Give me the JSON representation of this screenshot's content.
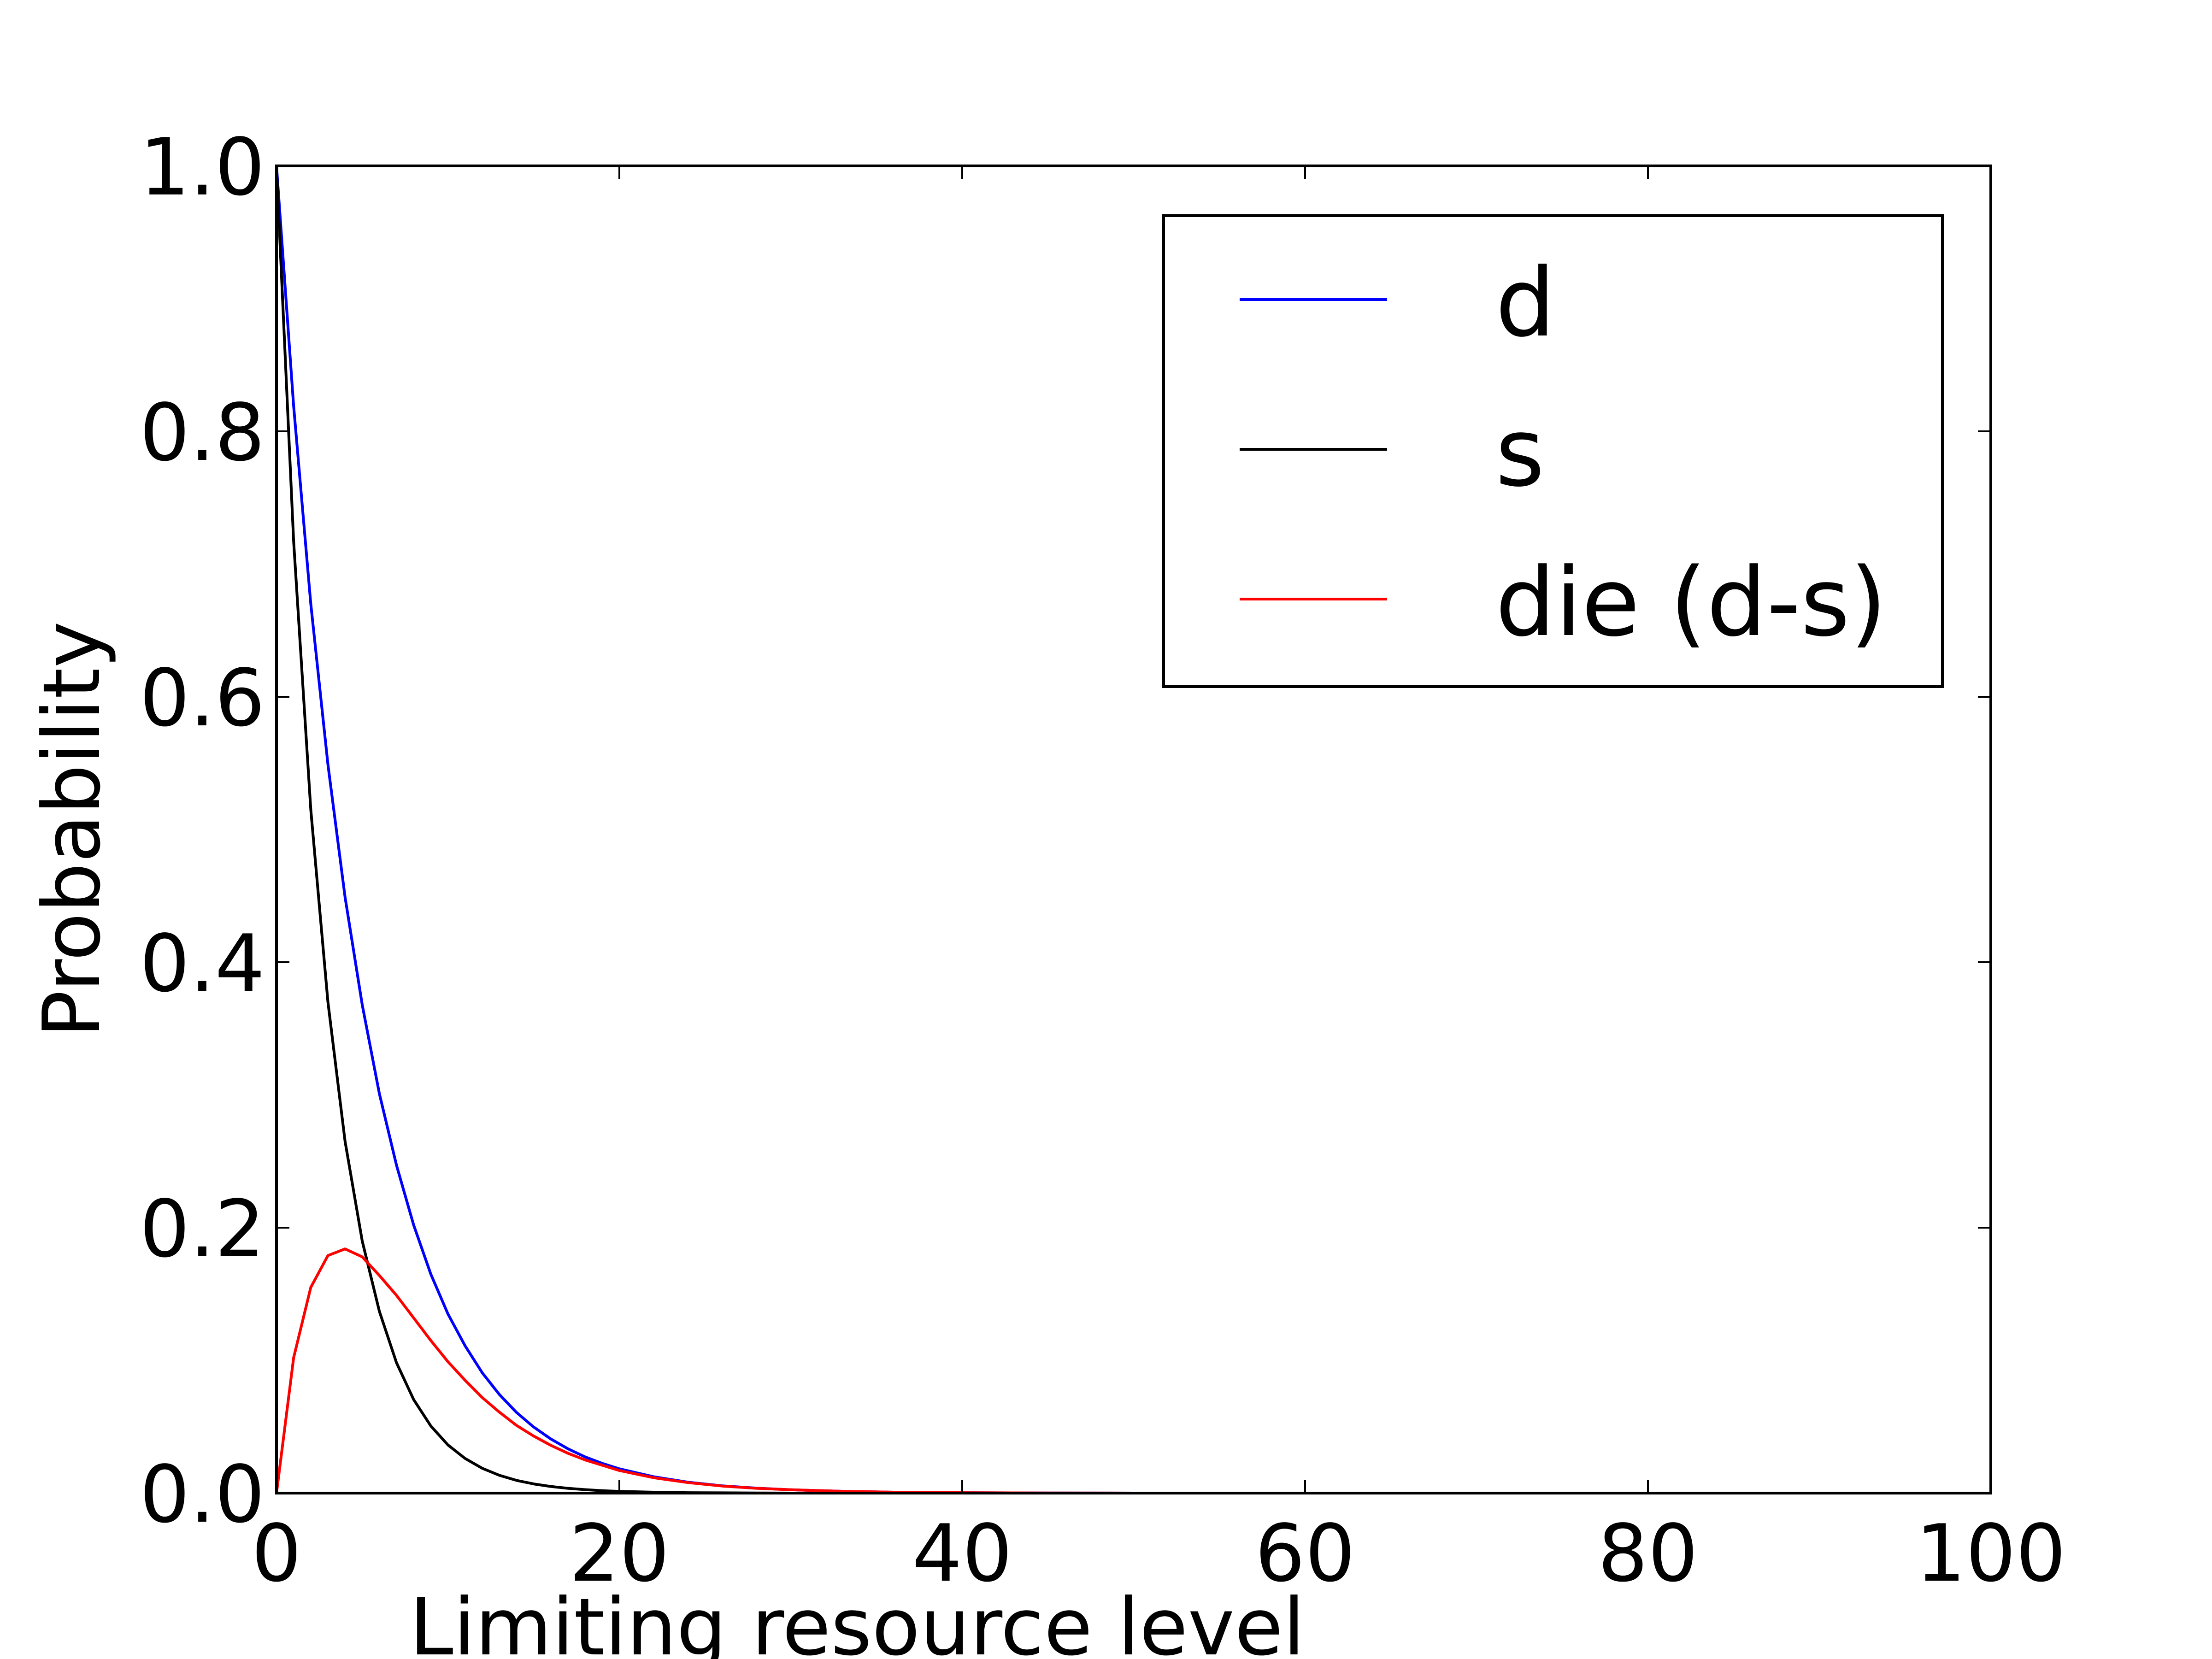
{
  "chart_data": {
    "type": "line",
    "title": "",
    "xlabel": "Limiting resource level",
    "ylabel": "Probability",
    "xlim": [
      0,
      100
    ],
    "ylim": [
      0,
      1.0
    ],
    "xticks": [
      "0",
      "20",
      "40",
      "60",
      "80",
      "100"
    ],
    "yticks": [
      "0.0",
      "0.2",
      "0.4",
      "0.6",
      "0.8",
      "1.0"
    ],
    "grid": false,
    "legend_position": "top-right",
    "x": [
      0,
      1,
      2,
      3,
      4,
      5,
      6,
      7,
      8,
      9,
      10,
      11,
      12,
      13,
      14,
      15,
      16,
      17,
      18,
      19,
      20,
      22,
      24,
      26,
      28,
      30,
      33,
      36,
      40,
      45,
      50,
      55,
      60,
      70,
      80,
      90,
      100
    ],
    "series": [
      {
        "name": "d",
        "color": "#0000ff",
        "values": [
          1.0,
          0.819,
          0.67,
          0.549,
          0.449,
          0.368,
          0.301,
          0.247,
          0.202,
          0.165,
          0.135,
          0.111,
          0.0907,
          0.0743,
          0.0608,
          0.0498,
          0.0408,
          0.0334,
          0.0273,
          0.0224,
          0.0183,
          0.0123,
          0.0082,
          0.0055,
          0.0037,
          0.0025,
          0.0014,
          0.0007,
          0.0003,
          0.0001,
          0.0,
          0.0,
          0.0,
          0.0,
          0.0,
          0.0,
          0.0
        ]
      },
      {
        "name": "s",
        "color": "#000000",
        "values": [
          1.0,
          0.717,
          0.515,
          0.37,
          0.265,
          0.19,
          0.137,
          0.0982,
          0.0705,
          0.0506,
          0.0363,
          0.0261,
          0.0187,
          0.0134,
          0.0096,
          0.0069,
          0.005,
          0.0036,
          0.0026,
          0.0018,
          0.0013,
          0.0007,
          0.0003,
          0.0002,
          0.0001,
          0.0,
          0.0,
          0.0,
          0.0,
          0.0,
          0.0,
          0.0,
          0.0,
          0.0,
          0.0,
          0.0,
          0.0
        ]
      },
      {
        "name": "die (d-s)",
        "color": "#ff0000",
        "values": [
          0.0,
          0.102,
          0.155,
          0.179,
          0.184,
          0.178,
          0.164,
          0.149,
          0.132,
          0.115,
          0.099,
          0.085,
          0.072,
          0.061,
          0.051,
          0.043,
          0.036,
          0.03,
          0.025,
          0.021,
          0.017,
          0.0116,
          0.0079,
          0.0053,
          0.0036,
          0.0025,
          0.0014,
          0.0007,
          0.0003,
          0.0001,
          0.0,
          0.0,
          0.0,
          0.0,
          0.0,
          0.0,
          0.0
        ]
      }
    ]
  }
}
